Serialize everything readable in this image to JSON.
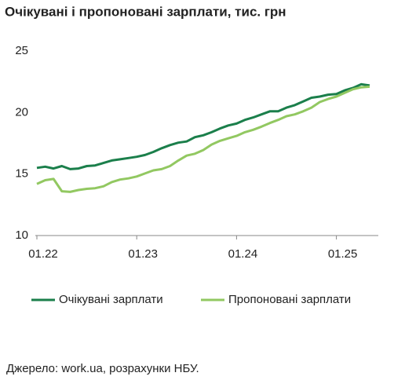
{
  "chart_data": {
    "type": "line",
    "title": "Очікувані і пропоновані зарплати, тис. грн",
    "categories": [
      "01.22",
      null,
      null,
      null,
      null,
      null,
      null,
      null,
      null,
      null,
      null,
      null,
      "01.23",
      null,
      null,
      null,
      null,
      null,
      null,
      null,
      null,
      null,
      null,
      null,
      "01.24",
      null,
      null,
      null,
      null,
      null,
      null,
      null,
      null,
      null,
      null,
      null,
      "01.25",
      null,
      null,
      null,
      null
    ],
    "series": [
      {
        "name": "Очікувані зарплати",
        "color": "#1b7f4b",
        "values": [
          15.5,
          15.6,
          15.45,
          15.65,
          15.4,
          15.45,
          15.65,
          15.7,
          15.9,
          16.1,
          16.2,
          16.3,
          16.4,
          16.55,
          16.8,
          17.1,
          17.35,
          17.55,
          17.65,
          18.0,
          18.15,
          18.4,
          18.7,
          18.95,
          19.1,
          19.4,
          19.6,
          19.85,
          20.1,
          20.1,
          20.4,
          20.6,
          20.9,
          21.2,
          21.3,
          21.45,
          21.5,
          21.8,
          22.0,
          22.3,
          22.2
        ]
      },
      {
        "name": "Пропоновані зарплати",
        "color": "#92c861",
        "values": [
          14.2,
          14.5,
          14.6,
          13.6,
          13.55,
          13.7,
          13.8,
          13.85,
          14.0,
          14.35,
          14.55,
          14.65,
          14.8,
          15.05,
          15.3,
          15.4,
          15.65,
          16.1,
          16.5,
          16.65,
          16.95,
          17.4,
          17.7,
          17.9,
          18.1,
          18.4,
          18.6,
          18.85,
          19.15,
          19.4,
          19.7,
          19.85,
          20.1,
          20.4,
          20.85,
          21.1,
          21.3,
          21.6,
          21.9,
          22.05,
          22.1
        ]
      }
    ],
    "ylim": [
      10,
      25
    ],
    "yticks": [
      10,
      15,
      20,
      25
    ],
    "grid": false,
    "source": "Джерело: work.ua, розрахунки НБУ."
  }
}
